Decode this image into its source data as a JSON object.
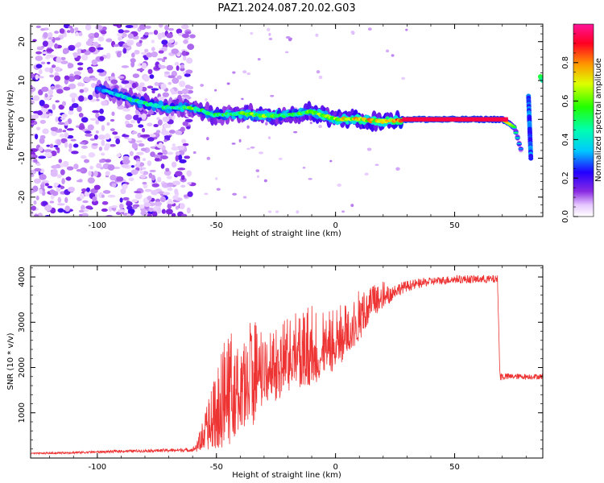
{
  "title": "PAZ1.2024.087.20.02.G03",
  "colors": {
    "snr_line": "#ee3333",
    "ridge_core": "#e8102a"
  },
  "chart_data": [
    {
      "type": "heatmap",
      "xlabel": "Height of straight line (km)",
      "ylabel": "Frequency (Hz)",
      "xlim": [
        -128,
        87
      ],
      "ylim": [
        -25,
        24.5
      ],
      "xticks": [
        -100,
        -50,
        0,
        50
      ],
      "yticks": [
        -20,
        -10,
        0,
        10,
        20
      ],
      "xtick_labels": [
        "-100",
        "-50",
        "0",
        "50"
      ],
      "ytick_labels": [
        "-20",
        "-10",
        "0",
        "10",
        "20"
      ],
      "colorbar": {
        "label": "Normalized spectral amplitude",
        "colormap": "gist_rainbow_r",
        "range": [
          0,
          1
        ],
        "ticks": [
          0.0,
          0.2,
          0.4,
          0.6,
          0.8
        ],
        "tick_labels": [
          "0.0",
          "0.2",
          "0.4",
          "0.6",
          "0.8"
        ]
      },
      "ridge": {
        "x": [
          -100,
          -90,
          -80,
          -70,
          -60,
          -50,
          -40,
          -30,
          -20,
          -10,
          0,
          10,
          20,
          30,
          50,
          70,
          75,
          78
        ],
        "y": [
          8,
          6,
          4,
          3,
          3,
          1,
          1.5,
          1,
          1,
          2,
          0,
          0,
          -0.5,
          0,
          0,
          0,
          -2,
          -8
        ],
        "amplitude": [
          0.35,
          0.4,
          0.45,
          0.45,
          0.55,
          0.5,
          0.55,
          0.6,
          0.5,
          0.6,
          0.65,
          0.7,
          0.7,
          0.95,
          0.95,
          0.9,
          0.55,
          0.3
        ]
      },
      "secondary_features": [
        {
          "x": [
            81,
            82
          ],
          "y": [
            6,
            -10
          ],
          "amplitude": 0.3
        },
        {
          "x": [
            86,
            87
          ],
          "y": [
            11,
            10
          ],
          "amplitude": 0.55
        }
      ],
      "noise_region": {
        "x": [
          -128,
          -60
        ],
        "y": [
          -25,
          24.5
        ]
      }
    },
    {
      "type": "line",
      "xlabel": "Height of straight line (km)",
      "ylabel": "SNR (10 * v/v)",
      "xlim": [
        -128,
        87
      ],
      "ylim": [
        0,
        4250
      ],
      "xticks": [
        -100,
        -50,
        0,
        50
      ],
      "yticks": [
        1000,
        2000,
        3000,
        4000
      ],
      "xtick_labels": [
        "-100",
        "-50",
        "0",
        "50"
      ],
      "ytick_labels": [
        "1000",
        "2000",
        "3000",
        "4000"
      ],
      "series": [
        {
          "x": [
            -128,
            -110,
            -90,
            -70,
            -60,
            -57,
            -50,
            -45,
            -40,
            -35,
            -30,
            -25,
            -20,
            -15,
            -10,
            -5,
            0,
            5,
            10,
            15,
            20,
            25,
            30,
            40,
            50,
            60,
            68,
            69,
            75,
            87
          ],
          "y": [
            100,
            120,
            150,
            170,
            180,
            300,
            800,
            1100,
            1300,
            1500,
            1700,
            1800,
            2000,
            2100,
            2200,
            2250,
            2400,
            2700,
            2950,
            3300,
            3500,
            3700,
            3800,
            3900,
            3950,
            3950,
            3950,
            1800,
            1800,
            1800
          ],
          "peak_envelope": [
            130,
            160,
            200,
            230,
            250,
            600,
            2000,
            2900,
            2500,
            3200,
            2700,
            2900,
            3100,
            3300,
            3400,
            3200,
            3300,
            3600,
            3700,
            3800,
            3900,
            3950,
            4000,
            4050,
            4100,
            4100,
            4100,
            1950,
            1900,
            1900
          ]
        }
      ]
    }
  ]
}
